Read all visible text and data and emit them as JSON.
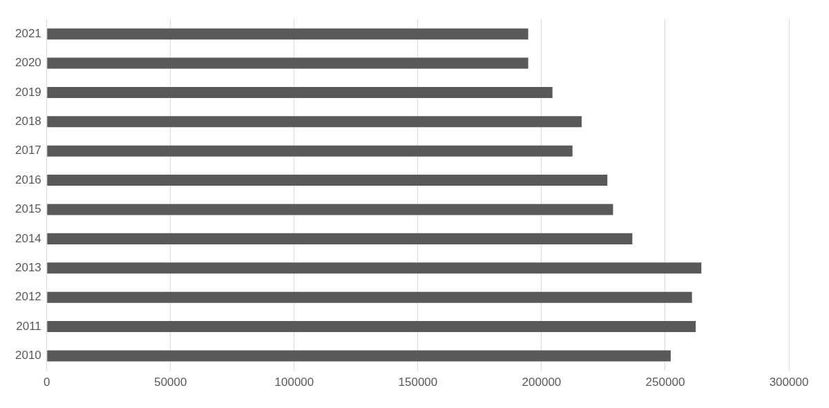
{
  "chart_data": {
    "type": "bar",
    "orientation": "horizontal",
    "categories": [
      "2021",
      "2020",
      "2019",
      "2018",
      "2017",
      "2016",
      "2015",
      "2014",
      "2013",
      "2012",
      "2011",
      "2010"
    ],
    "values": [
      194600,
      194600,
      204400,
      216200,
      212500,
      226600,
      228900,
      236700,
      264600,
      260800,
      262300,
      252200
    ],
    "color": "#595959",
    "xlim": [
      0,
      300000
    ],
    "xticks": [
      0,
      50000,
      100000,
      150000,
      200000,
      250000,
      300000
    ],
    "grid": "x",
    "legend": false
  }
}
